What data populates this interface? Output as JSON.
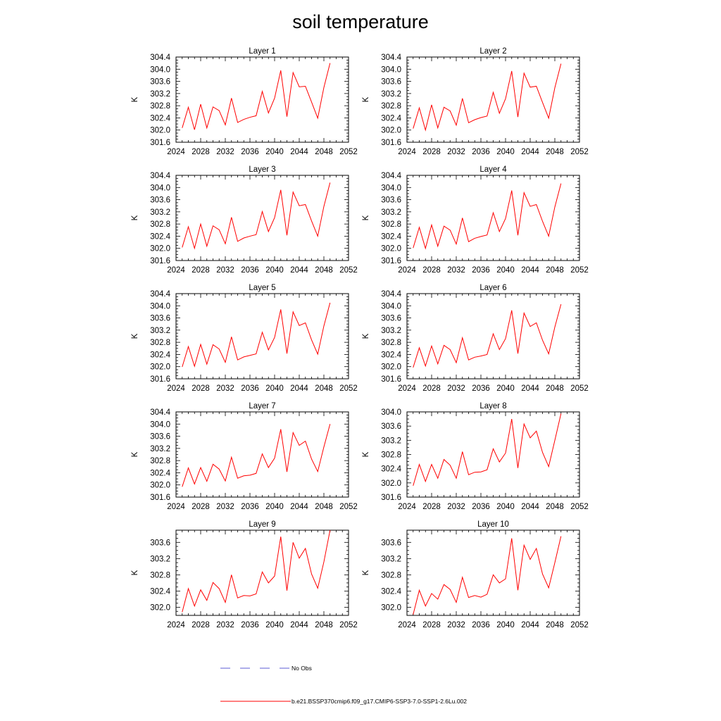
{
  "figure": {
    "title": "soil temperature"
  },
  "legend": [
    {
      "label": "No Obs",
      "color": "#5b5bd6",
      "style": "dashed"
    },
    {
      "label": "b.e21.BSSP370cmip6.f09_g17.CMIP6-SSP3-7.0-SSP1-2.6Lu.002",
      "color": "#ff0000",
      "style": "solid"
    }
  ],
  "chart_data": [
    {
      "type": "line",
      "title": "Layer 1",
      "xlabel": "",
      "ylabel": "K",
      "xlim": [
        2024,
        2052
      ],
      "ylim": [
        301.6,
        304.4
      ],
      "xticks": [
        2024,
        2028,
        2032,
        2036,
        2040,
        2044,
        2048,
        2052
      ],
      "yticks": [
        301.6,
        302.0,
        302.4,
        302.8,
        303.2,
        303.6,
        304.0,
        304.4
      ],
      "series": [
        {
          "color": "#ff0000",
          "x": [
            2025,
            2026,
            2027,
            2028,
            2029,
            2030,
            2031,
            2032,
            2033,
            2034,
            2035,
            2036,
            2037,
            2038,
            2039,
            2040,
            2041,
            2042,
            2043,
            2044,
            2045,
            2046,
            2047,
            2048,
            2049
          ],
          "y": [
            302.07,
            302.75,
            302.01,
            302.85,
            302.07,
            302.76,
            302.64,
            302.17,
            303.05,
            302.25,
            302.35,
            302.42,
            302.47,
            303.27,
            302.56,
            303.05,
            303.96,
            302.44,
            303.89,
            303.42,
            303.44,
            302.92,
            302.39,
            303.4,
            304.2
          ]
        }
      ]
    },
    {
      "type": "line",
      "title": "Layer 2",
      "xlabel": "",
      "ylabel": "K",
      "xlim": [
        2024,
        2052
      ],
      "ylim": [
        301.6,
        304.4
      ],
      "xticks": [
        2024,
        2028,
        2032,
        2036,
        2040,
        2044,
        2048,
        2052
      ],
      "yticks": [
        301.6,
        302.0,
        302.4,
        302.8,
        303.2,
        303.6,
        304.0,
        304.4
      ],
      "series": [
        {
          "color": "#ff0000",
          "x": [
            2025,
            2026,
            2027,
            2028,
            2029,
            2030,
            2031,
            2032,
            2033,
            2034,
            2035,
            2036,
            2037,
            2038,
            2039,
            2040,
            2041,
            2042,
            2043,
            2044,
            2045,
            2046,
            2047,
            2048,
            2049
          ],
          "y": [
            302.05,
            302.73,
            302.0,
            302.83,
            302.07,
            302.75,
            302.63,
            302.16,
            303.04,
            302.24,
            302.34,
            302.41,
            302.46,
            303.24,
            302.55,
            303.03,
            303.94,
            302.43,
            303.87,
            303.41,
            303.44,
            302.91,
            302.39,
            303.39,
            304.18
          ]
        }
      ]
    },
    {
      "type": "line",
      "title": "Layer 3",
      "xlabel": "",
      "ylabel": "K",
      "xlim": [
        2024,
        2052
      ],
      "ylim": [
        301.6,
        304.4
      ],
      "xticks": [
        2024,
        2028,
        2032,
        2036,
        2040,
        2044,
        2048,
        2052
      ],
      "yticks": [
        301.6,
        302.0,
        302.4,
        302.8,
        303.2,
        303.6,
        304.0,
        304.4
      ],
      "series": [
        {
          "color": "#ff0000",
          "x": [
            2025,
            2026,
            2027,
            2028,
            2029,
            2030,
            2031,
            2032,
            2033,
            2034,
            2035,
            2036,
            2037,
            2038,
            2039,
            2040,
            2041,
            2042,
            2043,
            2044,
            2045,
            2046,
            2047,
            2048,
            2049
          ],
          "y": [
            302.03,
            302.71,
            302.0,
            302.8,
            302.07,
            302.74,
            302.61,
            302.15,
            303.02,
            302.23,
            302.34,
            302.4,
            302.45,
            303.21,
            302.55,
            303.01,
            303.92,
            302.43,
            303.85,
            303.4,
            303.44,
            302.9,
            302.4,
            303.38,
            304.16
          ]
        }
      ]
    },
    {
      "type": "line",
      "title": "Layer 4",
      "xlabel": "",
      "ylabel": "K",
      "xlim": [
        2024,
        2052
      ],
      "ylim": [
        301.6,
        304.4
      ],
      "xticks": [
        2024,
        2028,
        2032,
        2036,
        2040,
        2044,
        2048,
        2052
      ],
      "yticks": [
        301.6,
        302.0,
        302.4,
        302.8,
        303.2,
        303.6,
        304.0,
        304.4
      ],
      "series": [
        {
          "color": "#ff0000",
          "x": [
            2025,
            2026,
            2027,
            2028,
            2029,
            2030,
            2031,
            2032,
            2033,
            2034,
            2035,
            2036,
            2037,
            2038,
            2039,
            2040,
            2041,
            2042,
            2043,
            2044,
            2045,
            2046,
            2047,
            2048,
            2049
          ],
          "y": [
            302.01,
            302.69,
            302.0,
            302.77,
            302.07,
            302.73,
            302.6,
            302.14,
            303.0,
            302.22,
            302.33,
            302.39,
            302.44,
            303.17,
            302.55,
            302.98,
            303.9,
            302.43,
            303.83,
            303.38,
            303.44,
            302.89,
            302.4,
            303.36,
            304.13
          ]
        }
      ]
    },
    {
      "type": "line",
      "title": "Layer 5",
      "xlabel": "",
      "ylabel": "K",
      "xlim": [
        2024,
        2052
      ],
      "ylim": [
        301.6,
        304.4
      ],
      "xticks": [
        2024,
        2028,
        2032,
        2036,
        2040,
        2044,
        2048,
        2052
      ],
      "yticks": [
        301.6,
        302.0,
        302.4,
        302.8,
        303.2,
        303.6,
        304.0,
        304.4
      ],
      "series": [
        {
          "color": "#ff0000",
          "x": [
            2025,
            2026,
            2027,
            2028,
            2029,
            2030,
            2031,
            2032,
            2033,
            2034,
            2035,
            2036,
            2037,
            2038,
            2039,
            2040,
            2041,
            2042,
            2043,
            2044,
            2045,
            2046,
            2047,
            2048,
            2049
          ],
          "y": [
            301.99,
            302.66,
            302.01,
            302.73,
            302.08,
            302.72,
            302.58,
            302.14,
            302.98,
            302.22,
            302.32,
            302.37,
            302.42,
            303.13,
            302.55,
            302.96,
            303.88,
            302.43,
            303.8,
            303.35,
            303.44,
            302.88,
            302.41,
            303.34,
            304.1
          ]
        }
      ]
    },
    {
      "type": "line",
      "title": "Layer 6",
      "xlabel": "",
      "ylabel": "K",
      "xlim": [
        2024,
        2052
      ],
      "ylim": [
        301.6,
        304.4
      ],
      "xticks": [
        2024,
        2028,
        2032,
        2036,
        2040,
        2044,
        2048,
        2052
      ],
      "yticks": [
        301.6,
        302.0,
        302.4,
        302.8,
        303.2,
        303.6,
        304.0,
        304.4
      ],
      "series": [
        {
          "color": "#ff0000",
          "x": [
            2025,
            2026,
            2027,
            2028,
            2029,
            2030,
            2031,
            2032,
            2033,
            2034,
            2035,
            2036,
            2037,
            2038,
            2039,
            2040,
            2041,
            2042,
            2043,
            2044,
            2045,
            2046,
            2047,
            2048,
            2049
          ],
          "y": [
            301.97,
            302.62,
            302.02,
            302.68,
            302.09,
            302.7,
            302.56,
            302.13,
            302.95,
            302.22,
            302.31,
            302.35,
            302.4,
            303.08,
            302.56,
            302.92,
            303.85,
            302.43,
            303.76,
            303.32,
            303.44,
            302.87,
            302.42,
            303.3,
            304.05
          ]
        }
      ]
    },
    {
      "type": "line",
      "title": "Layer 7",
      "xlabel": "",
      "ylabel": "K",
      "xlim": [
        2024,
        2052
      ],
      "ylim": [
        301.6,
        304.4
      ],
      "xticks": [
        2024,
        2028,
        2032,
        2036,
        2040,
        2044,
        2048,
        2052
      ],
      "yticks": [
        301.6,
        302.0,
        302.4,
        302.8,
        303.2,
        303.6,
        304.0,
        304.4
      ],
      "series": [
        {
          "color": "#ff0000",
          "x": [
            2025,
            2026,
            2027,
            2028,
            2029,
            2030,
            2031,
            2032,
            2033,
            2034,
            2035,
            2036,
            2037,
            2038,
            2039,
            2040,
            2041,
            2042,
            2043,
            2044,
            2045,
            2046,
            2047,
            2048,
            2049
          ],
          "y": [
            301.94,
            302.56,
            302.03,
            302.57,
            302.12,
            302.68,
            302.52,
            302.13,
            302.91,
            302.22,
            302.3,
            302.32,
            302.38,
            303.02,
            302.57,
            302.88,
            303.83,
            302.43,
            303.72,
            303.3,
            303.44,
            302.85,
            302.44,
            303.25,
            304.0
          ]
        }
      ]
    },
    {
      "type": "line",
      "title": "Layer 8",
      "xlabel": "",
      "ylabel": "K",
      "xlim": [
        2024,
        2052
      ],
      "ylim": [
        301.6,
        304.0
      ],
      "xticks": [
        2024,
        2028,
        2032,
        2036,
        2040,
        2044,
        2048,
        2052
      ],
      "yticks": [
        301.6,
        302.0,
        302.4,
        302.8,
        303.2,
        303.6,
        304.0
      ],
      "series": [
        {
          "color": "#ff0000",
          "x": [
            2025,
            2026,
            2027,
            2028,
            2029,
            2030,
            2031,
            2032,
            2033,
            2034,
            2035,
            2036,
            2037,
            2038,
            2039,
            2040,
            2041,
            2042,
            2043,
            2044,
            2045,
            2046,
            2047,
            2048,
            2049
          ],
          "y": [
            301.92,
            302.52,
            302.04,
            302.52,
            302.13,
            302.66,
            302.5,
            302.13,
            302.88,
            302.23,
            302.3,
            302.31,
            302.37,
            302.96,
            302.59,
            302.84,
            303.8,
            302.42,
            303.66,
            303.27,
            303.46,
            302.86,
            302.46,
            303.2,
            303.95
          ]
        }
      ]
    },
    {
      "type": "line",
      "title": "Layer 9",
      "xlabel": "",
      "ylabel": "K",
      "xlim": [
        2024,
        2052
      ],
      "ylim": [
        301.8,
        303.9
      ],
      "xticks": [
        2024,
        2028,
        2032,
        2036,
        2040,
        2044,
        2048,
        2052
      ],
      "yticks": [
        302.0,
        302.4,
        302.8,
        303.2,
        303.6
      ],
      "series": [
        {
          "color": "#ff0000",
          "x": [
            2025,
            2026,
            2027,
            2028,
            2029,
            2030,
            2031,
            2032,
            2033,
            2034,
            2035,
            2036,
            2037,
            2038,
            2039,
            2040,
            2041,
            2042,
            2043,
            2044,
            2045,
            2046,
            2047,
            2048,
            2049
          ],
          "y": [
            301.88,
            302.46,
            302.03,
            302.43,
            302.17,
            302.61,
            302.46,
            302.12,
            302.8,
            302.23,
            302.29,
            302.28,
            302.33,
            302.87,
            302.6,
            302.77,
            303.74,
            302.41,
            303.6,
            303.21,
            303.45,
            302.82,
            302.47,
            303.12,
            303.9
          ]
        }
      ]
    },
    {
      "type": "line",
      "title": "Layer 10",
      "xlabel": "",
      "ylabel": "K",
      "xlim": [
        2024,
        2052
      ],
      "ylim": [
        301.8,
        303.9
      ],
      "xticks": [
        2024,
        2028,
        2032,
        2036,
        2040,
        2044,
        2048,
        2052
      ],
      "yticks": [
        302.0,
        302.4,
        302.8,
        303.2,
        303.6
      ],
      "series": [
        {
          "color": "#ff0000",
          "x": [
            2025,
            2026,
            2027,
            2028,
            2029,
            2030,
            2031,
            2032,
            2033,
            2034,
            2035,
            2036,
            2037,
            2038,
            2039,
            2040,
            2041,
            2042,
            2043,
            2044,
            2045,
            2046,
            2047,
            2048,
            2049
          ],
          "y": [
            301.82,
            302.42,
            302.03,
            302.34,
            302.2,
            302.56,
            302.44,
            302.12,
            302.74,
            302.24,
            302.29,
            302.25,
            302.32,
            302.8,
            302.6,
            302.7,
            303.7,
            302.42,
            303.53,
            303.18,
            303.45,
            302.82,
            302.48,
            303.1,
            303.75
          ]
        }
      ]
    }
  ]
}
